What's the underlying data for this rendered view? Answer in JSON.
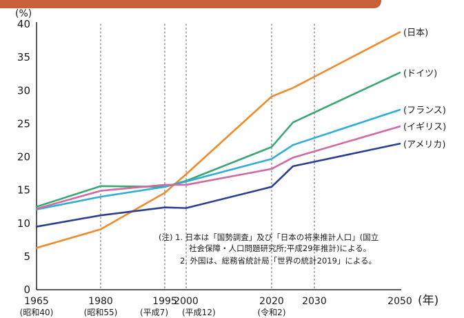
{
  "colors": {
    "top_bar": "#c8603a",
    "grid": "#9a9a9a",
    "axis": "#222222"
  },
  "chart_data": {
    "type": "line",
    "ylabel": "(%)",
    "xlabel": "(年)",
    "ylim": [
      0,
      40
    ],
    "yticks": [
      "0",
      "5",
      "10",
      "15",
      "20",
      "25",
      "30",
      "35",
      "40"
    ],
    "x_ticks": [
      {
        "label": "1965",
        "sub": "(昭和40)",
        "x": 1965
      },
      {
        "label": "1980",
        "sub": "(昭和55)",
        "x": 1980
      },
      {
        "label": "1995",
        "sub": "(平成7)",
        "x": 1995
      },
      {
        "label": "2000",
        "sub": "(平成12)",
        "x": 2000
      },
      {
        "label": "2020",
        "sub": "(令和2)",
        "x": 2020
      },
      {
        "label": "2030",
        "sub": "",
        "x": 2030
      },
      {
        "label": "2050",
        "sub": "",
        "x": 2050
      }
    ],
    "x_gridlines": [
      1980,
      1995,
      2000,
      2020,
      2030
    ],
    "grid": "vertical dotted lines",
    "series": [
      {
        "name": "(日本)",
        "color": "#f08a2c",
        "x": [
          1965,
          1980,
          1995,
          2000,
          2020,
          2025,
          2050
        ],
        "values": [
          6.3,
          9.1,
          14.6,
          17.4,
          29.1,
          30.4,
          38.8
        ]
      },
      {
        "name": "(ドイツ)",
        "color": "#3aa674",
        "x": [
          1965,
          1980,
          1995,
          2000,
          2020,
          2025,
          2050
        ],
        "values": [
          12.5,
          15.6,
          15.5,
          16.4,
          21.5,
          25.2,
          32.7
        ]
      },
      {
        "name": "(フランス)",
        "color": "#2eaed6",
        "x": [
          1965,
          1980,
          1995,
          2000,
          2020,
          2025,
          2050
        ],
        "values": [
          12.1,
          14.0,
          15.5,
          16.3,
          19.7,
          21.8,
          27.1
        ]
      },
      {
        "name": "(イギリス)",
        "color": "#d26aa2",
        "x": [
          1965,
          1980,
          1995,
          2000,
          2020,
          2025,
          2050
        ],
        "values": [
          12.2,
          14.9,
          15.8,
          15.8,
          18.2,
          19.9,
          24.6
        ]
      },
      {
        "name": "(アメリカ)",
        "color": "#2a3f8f",
        "x": [
          1965,
          1980,
          1995,
          2000,
          2020,
          2025,
          2050
        ],
        "values": [
          9.5,
          11.2,
          12.4,
          12.3,
          15.5,
          18.6,
          22.0
        ]
      }
    ]
  },
  "note": {
    "line1": "(注) 1. 日本は「国勢調査」及び「日本の将来推計人口」(国立",
    "line2": "社会保障・人口問題研究所;平成29年推計)による。",
    "line3": "2. 外国は、総務省統計局「世界の統計2019」による。"
  }
}
